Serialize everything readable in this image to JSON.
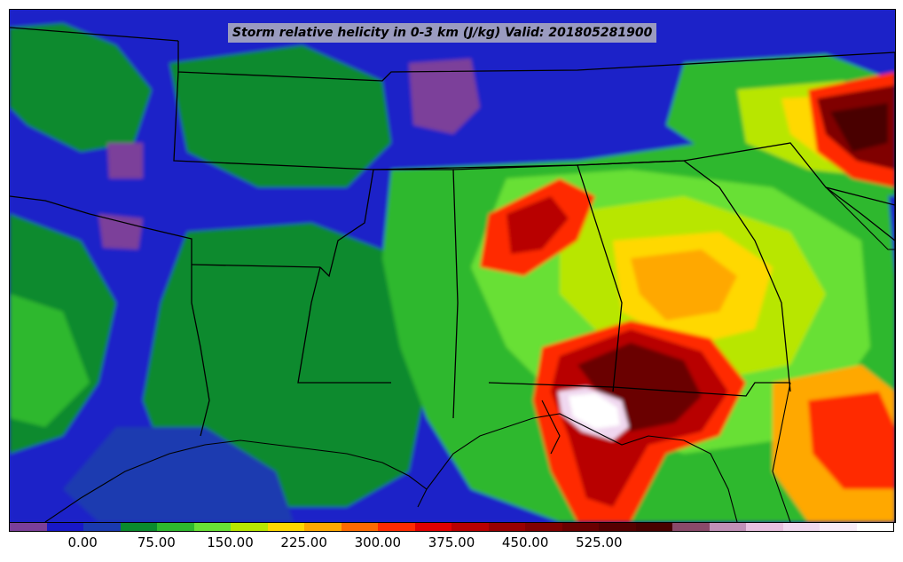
{
  "title": "Storm relative helicity in 0-3 km (J/kg) Valid: 201805281900",
  "colorbar": {
    "colors": [
      "#7b3f9a",
      "#1818c8",
      "#1a3ab0",
      "#0a8a2e",
      "#2eb82e",
      "#68e036",
      "#b8e600",
      "#ffd800",
      "#ffa800",
      "#ff6a00",
      "#ff2a00",
      "#e00000",
      "#b80000",
      "#980000",
      "#800000",
      "#6a0000",
      "#560000",
      "#480000",
      "#8a4a6a",
      "#c090b8",
      "#e8c0e0",
      "#f0d8f0",
      "#f8ecf8",
      "#ffffff"
    ],
    "tick_labels": [
      "0.00",
      "75.00",
      "150.00",
      "225.00",
      "300.00",
      "375.00",
      "450.00",
      "525.00"
    ]
  }
}
